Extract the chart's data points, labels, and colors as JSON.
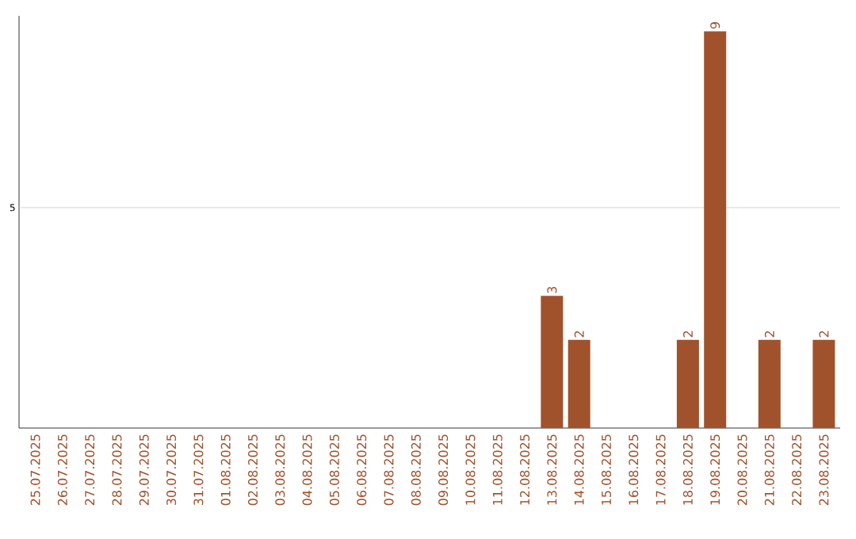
{
  "chart_data": {
    "type": "bar",
    "color": "#a0522d",
    "categories": [
      "25.07.2025",
      "26.07.2025",
      "27.07.2025",
      "28.07.2025",
      "29.07.2025",
      "30.07.2025",
      "31.07.2025",
      "01.08.2025",
      "02.08.2025",
      "03.08.2025",
      "04.08.2025",
      "05.08.2025",
      "06.08.2025",
      "07.08.2025",
      "08.08.2025",
      "09.08.2025",
      "10.08.2025",
      "11.08.2025",
      "12.08.2025",
      "13.08.2025",
      "14.08.2025",
      "15.08.2025",
      "16.08.2025",
      "17.08.2025",
      "18.08.2025",
      "19.08.2025",
      "20.08.2025",
      "21.08.2025",
      "22.08.2025",
      "23.08.2025"
    ],
    "values": [
      null,
      null,
      null,
      null,
      null,
      null,
      null,
      null,
      null,
      null,
      null,
      null,
      null,
      null,
      null,
      null,
      null,
      null,
      null,
      3,
      2,
      null,
      null,
      null,
      2,
      9,
      null,
      2,
      null,
      2
    ],
    "data_labels": true,
    "ylim": [
      0,
      9.35
    ],
    "ref_lines": [
      {
        "axis": "y",
        "value": 5,
        "label": "5",
        "color": "#cccccc"
      }
    ]
  }
}
